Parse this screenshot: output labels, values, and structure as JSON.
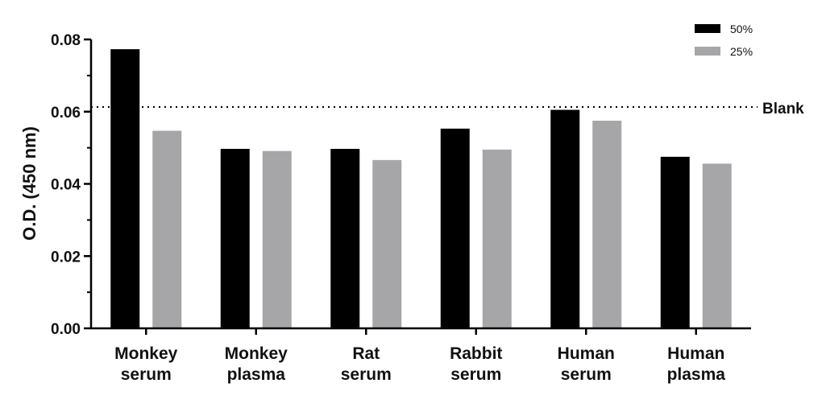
{
  "chart_data": {
    "type": "bar",
    "categories": [
      [
        "Monkey",
        "serum"
      ],
      [
        "Monkey",
        "plasma"
      ],
      [
        "Rat",
        "serum"
      ],
      [
        "Rabbit",
        "serum"
      ],
      [
        "Human",
        "serum"
      ],
      [
        "Human",
        "plasma"
      ]
    ],
    "series": [
      {
        "name": "50%",
        "color": "#000000",
        "values": [
          0.0773,
          0.0497,
          0.0497,
          0.0553,
          0.0605,
          0.0475
        ]
      },
      {
        "name": "25%",
        "color": "#a6a6a8",
        "values": [
          0.0547,
          0.0491,
          0.0466,
          0.0495,
          0.0575,
          0.0456
        ]
      }
    ],
    "ylabel": "O.D. (450 nm)",
    "ylim": [
      0,
      0.08
    ],
    "yticks": [
      "0.00",
      "0.02",
      "0.04",
      "0.06",
      "0.08"
    ],
    "reference_line": {
      "label": "Blank",
      "value": 0.0613,
      "style": "dotted"
    },
    "legend": {
      "position": "top-right"
    },
    "grid": false
  }
}
